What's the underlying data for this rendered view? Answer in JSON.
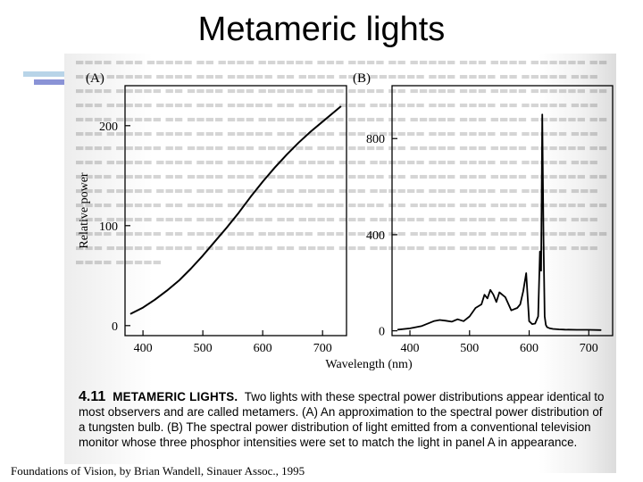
{
  "slide": {
    "title": "Metameric lights",
    "credit": "Foundations of Vision, by Brian Wandell, Sinauer Assoc., 1995"
  },
  "caption": {
    "number": "4.11",
    "heading": "METAMERIC LIGHTS.",
    "text": "Two lights with these spectral power distributions appear identical to most observers and are called metamers. (A) An approximation to the spectral power distribution of a tungsten bulb. (B) The spectral power distribution of light emitted from a conventional television monitor whose three phosphor intensities were set to match the light in panel A in appearance."
  },
  "shared_xlabel": "Wavelength (nm)",
  "chart_data": [
    {
      "type": "line",
      "panel": "(A)",
      "title": "",
      "xlabel": "Wavelength (nm)",
      "ylabel": "Relative power",
      "xlim": [
        370,
        740
      ],
      "ylim": [
        -10,
        240
      ],
      "xticks": [
        400,
        500,
        600,
        700
      ],
      "yticks": [
        0,
        100,
        200
      ],
      "grid": false,
      "series": [
        {
          "name": "Tungsten bulb approximation",
          "x": [
            380,
            400,
            420,
            440,
            460,
            480,
            500,
            520,
            540,
            560,
            580,
            600,
            620,
            640,
            660,
            680,
            700,
            720,
            730
          ],
          "values": [
            12,
            18,
            26,
            35,
            45,
            57,
            70,
            84,
            98,
            113,
            129,
            144,
            158,
            171,
            183,
            194,
            204,
            214,
            219
          ]
        }
      ]
    },
    {
      "type": "line",
      "panel": "(B)",
      "title": "",
      "xlabel": "Wavelength (nm)",
      "ylabel": "",
      "xlim": [
        370,
        740
      ],
      "ylim": [
        -20,
        1020
      ],
      "xticks": [
        400,
        500,
        600,
        700
      ],
      "yticks": [
        0,
        400,
        800
      ],
      "grid": false,
      "series": [
        {
          "name": "Television monitor phosphors",
          "x": [
            380,
            400,
            420,
            440,
            450,
            460,
            470,
            480,
            490,
            500,
            510,
            520,
            525,
            530,
            535,
            540,
            545,
            550,
            560,
            570,
            580,
            585,
            590,
            595,
            600,
            605,
            610,
            615,
            618,
            620,
            622,
            624,
            626,
            628,
            630,
            635,
            640,
            650,
            660,
            680,
            700,
            720
          ],
          "values": [
            5,
            10,
            20,
            40,
            45,
            42,
            38,
            48,
            40,
            60,
            95,
            110,
            150,
            135,
            170,
            150,
            120,
            160,
            140,
            85,
            95,
            110,
            165,
            240,
            40,
            28,
            30,
            60,
            330,
            250,
            900,
            380,
            60,
            25,
            15,
            10,
            8,
            6,
            5,
            4,
            4,
            3
          ]
        }
      ]
    }
  ]
}
